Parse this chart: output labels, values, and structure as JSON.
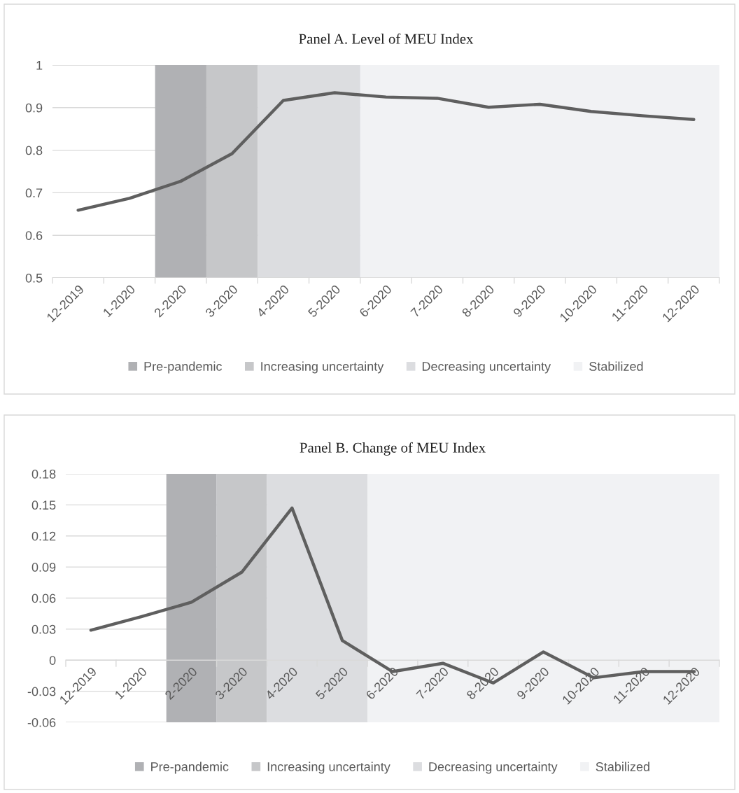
{
  "chart_data": [
    {
      "type": "line",
      "title": "Panel A. Level of MEU Index",
      "categories": [
        "12-2019",
        "1-2020",
        "2-2020",
        "3-2020",
        "4-2020",
        "5-2020",
        "6-2020",
        "7-2020",
        "8-2020",
        "9-2020",
        "10-2020",
        "11-2020",
        "12-2020"
      ],
      "series": [
        {
          "color": "#5f5f5f",
          "values": [
            0.659,
            0.687,
            0.727,
            0.792,
            0.917,
            0.935,
            0.925,
            0.922,
            0.901,
            0.908,
            0.891,
            0.881,
            0.872
          ]
        }
      ],
      "bands": [
        {
          "axis": "x",
          "from": "2-2020",
          "to": "2-2020",
          "label": "Pre-pandemic",
          "color": "#b0b1b4"
        },
        {
          "axis": "x",
          "from": "3-2020",
          "to": "3-2020",
          "label": "Increasing uncertainty",
          "color": "#c6c7c9"
        },
        {
          "axis": "x",
          "from": "4-2020",
          "to": "5-2020",
          "label": "Decreasing uncertainty",
          "color": "#dcdde0"
        },
        {
          "axis": "x",
          "from": "6-2020",
          "to": "12-2020",
          "label": "Stabilized",
          "color": "#f1f2f4"
        }
      ],
      "ylim": [
        0.5,
        1
      ],
      "yticks": [
        0.5,
        0.6,
        0.7,
        0.8,
        0.9,
        1
      ],
      "grid": "y",
      "legend": "bottom",
      "marker": "none",
      "line_style": "solid"
    },
    {
      "type": "line",
      "title": "Panel B. Change of MEU Index",
      "categories": [
        "12-2019",
        "1-2020",
        "2-2020",
        "3-2020",
        "4-2020",
        "5-2020",
        "6-2020",
        "7-2020",
        "8-2020",
        "9-2020",
        "10-2020",
        "11-2020",
        "12-2020"
      ],
      "series": [
        {
          "color": "#5f5f5f",
          "values": [
            0.029,
            0.042,
            0.056,
            0.085,
            0.147,
            0.019,
            -0.011,
            -0.003,
            -0.022,
            0.008,
            -0.017,
            -0.011,
            -0.011
          ]
        }
      ],
      "bands": [
        {
          "axis": "x",
          "from": "2-2020",
          "to": "2-2020",
          "label": "Pre-pandemic",
          "color": "#b0b1b4"
        },
        {
          "axis": "x",
          "from": "3-2020",
          "to": "3-2020",
          "label": "Increasing uncertainty",
          "color": "#c6c7c9"
        },
        {
          "axis": "x",
          "from": "4-2020",
          "to": "5-2020",
          "label": "Decreasing uncertainty",
          "color": "#dcdde0"
        },
        {
          "axis": "x",
          "from": "6-2020",
          "to": "12-2020",
          "label": "Stabilized",
          "color": "#f1f2f4"
        }
      ],
      "ylim": [
        -0.06,
        0.18
      ],
      "yticks": [
        -0.06,
        -0.03,
        0,
        0.03,
        0.06,
        0.09,
        0.12,
        0.15,
        0.18
      ],
      "grid": "y",
      "legend": "bottom",
      "marker": "none",
      "line_style": "solid"
    }
  ]
}
